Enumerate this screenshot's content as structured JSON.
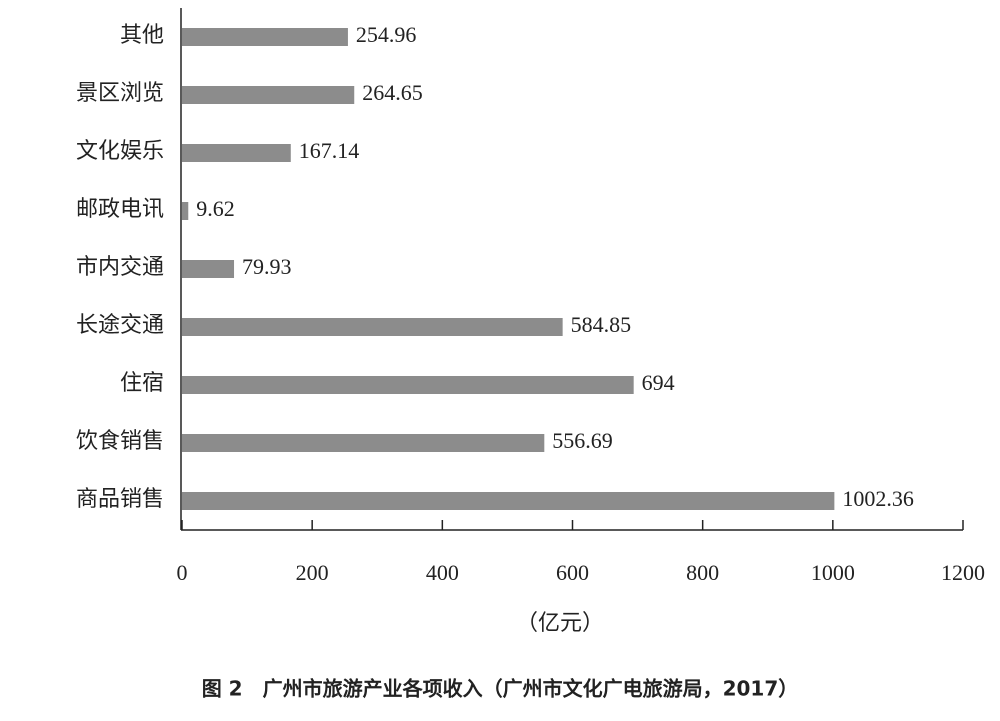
{
  "chart_data": {
    "type": "bar",
    "orientation": "horizontal",
    "categories": [
      "其他",
      "景区浏览",
      "文化娱乐",
      "邮政电讯",
      "市内交通",
      "长途交通",
      "住宿",
      "饮食销售",
      "商品销售"
    ],
    "values": [
      254.96,
      264.65,
      167.14,
      9.62,
      79.93,
      584.85,
      694,
      556.69,
      1002.36
    ],
    "color": "#8c8c8c",
    "xlim": [
      0,
      1200
    ],
    "xticks": [
      0,
      200,
      400,
      600,
      800,
      1000,
      1200
    ],
    "xlabel": "（亿元）",
    "caption": "图 2　广州市旅游产业各项收入（广州市文化广电旅游局，2017）"
  }
}
